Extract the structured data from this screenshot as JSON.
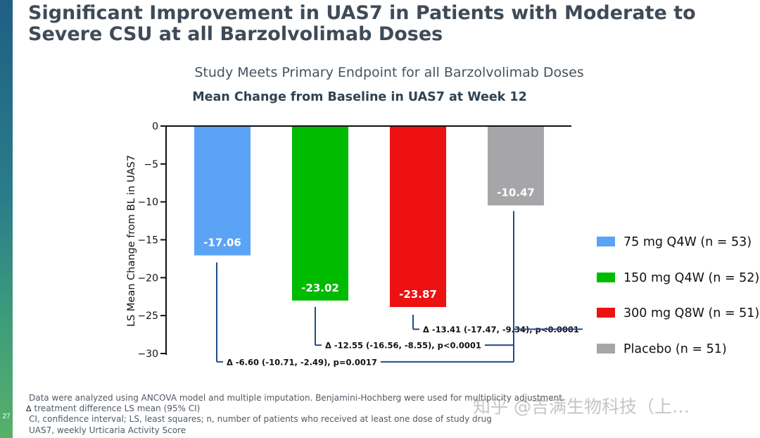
{
  "page": {
    "title": "Significant Improvement in UAS7 in Patients with Moderate to Severe CSU at all Barzolvolimab Doses",
    "page_number": "27",
    "watermark": "知乎 @吉满生物科技（上…"
  },
  "chart_data": {
    "type": "bar",
    "subtitle": "Study Meets Primary Endpoint for all Barzolvolimab Doses",
    "title": "Mean Change from Baseline in UAS7 at Week 12",
    "ylabel": "LS Mean Change from BL in UAS7",
    "xlabel": "",
    "ylim": [
      -30,
      0
    ],
    "yticks": [
      0,
      -5,
      -10,
      -15,
      -20,
      -25,
      -30
    ],
    "categories": [
      "75 mg Q4W (n = 53)",
      "150 mg Q4W (n = 52)",
      "300 mg Q8W (n = 51)",
      "Placebo (n = 51)"
    ],
    "values": [
      -17.06,
      -23.02,
      -23.87,
      -10.47
    ],
    "value_labels": [
      "-17.06",
      "-23.02",
      "-23.87",
      "-10.47"
    ],
    "colors": [
      "#5ba3f5",
      "#00bb00",
      "#ee1111",
      "#a6a6a8"
    ],
    "legend_position": "right",
    "comparisons": [
      {
        "from": 2,
        "to": 3,
        "label": "Δ -13.41 (-17.47, -9.34), p<0.0001",
        "level": -26.8
      },
      {
        "from": 1,
        "to": 3,
        "label": "Δ -12.55 (-16.56, -8.55), p<0.0001",
        "level": -28.9
      },
      {
        "from": 0,
        "to": 3,
        "label": "Δ -6.60 (-10.71, -2.49), p=0.0017",
        "level": -31.1
      }
    ]
  },
  "footnotes": {
    "line1": "Data were analyzed using ANCOVA model and multiple imputation. Benjamini-Hochberg were used for multiplicity adjustment.",
    "delta_symbol": "Δ",
    "line2": "treatment difference LS mean (95% CI)",
    "line3": "CI, confidence interval; LS, least squares; n, number of patients who received at least one dose of study drug",
    "line4": "UAS7, weekly Urticaria Activity Score"
  }
}
